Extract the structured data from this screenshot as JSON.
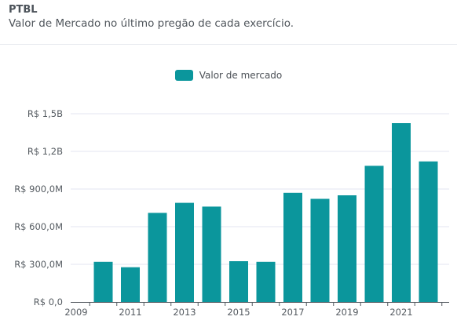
{
  "header": {
    "ticker": "PTBL",
    "subtitle": "Valor de Mercado no último pregão de cada exercício."
  },
  "chart_data": {
    "type": "bar",
    "categories": [
      "2010",
      "2011",
      "2012",
      "2013",
      "2014",
      "2015",
      "2016",
      "2017",
      "2018",
      "2019",
      "2020",
      "2021",
      "2022"
    ],
    "series": [
      {
        "name": "Valor de mercado",
        "values": [
          320,
          277,
          710,
          790,
          760,
          325,
          320,
          870,
          822,
          850,
          1085,
          1425,
          1120
        ]
      }
    ],
    "x_tick_labels": [
      "2009",
      "2011",
      "2013",
      "2015",
      "2017",
      "2019",
      "2021"
    ],
    "y_ticks": [
      0,
      300,
      600,
      900,
      1200,
      1500
    ],
    "y_tick_labels": [
      "R$ 0,0",
      "R$ 300,0M",
      "R$ 600,0M",
      "R$ 900,0M",
      "R$ 1,2B",
      "R$ 1,5B"
    ],
    "ylim": [
      0,
      1500
    ],
    "unit": "R$ milhões",
    "grid": true,
    "legend_position": "top-center",
    "color": "#0b969c"
  }
}
